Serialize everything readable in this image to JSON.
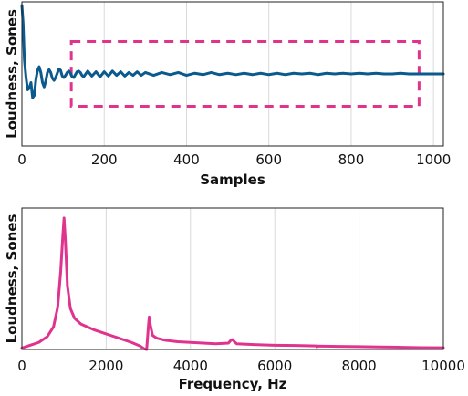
{
  "chart_data": [
    {
      "type": "line",
      "title": "",
      "xlabel": "Samples",
      "ylabel": "Loudness, Sones",
      "xlim": [
        0,
        1024
      ],
      "ylim": [
        -1,
        1
      ],
      "y_tick_labels_shown": false,
      "xticks": [
        "0",
        "200",
        "400",
        "600",
        "800",
        "1000"
      ],
      "xtick_values": [
        0,
        200,
        400,
        600,
        800,
        1000
      ],
      "grid": "vertical",
      "series": [
        {
          "color": "#0b5a8e",
          "x": [
            0,
            3,
            6,
            10,
            14,
            18,
            22,
            26,
            30,
            34,
            38,
            42,
            46,
            50,
            54,
            58,
            62,
            66,
            70,
            74,
            78,
            82,
            86,
            90,
            94,
            98,
            102,
            106,
            110,
            114,
            118,
            122,
            126,
            130,
            134,
            138,
            142,
            146,
            150,
            160,
            170,
            180,
            190,
            200,
            210,
            220,
            230,
            240,
            250,
            260,
            270,
            280,
            290,
            300,
            320,
            340,
            360,
            380,
            400,
            420,
            440,
            460,
            480,
            500,
            520,
            540,
            560,
            580,
            600,
            620,
            640,
            660,
            680,
            700,
            720,
            740,
            760,
            780,
            800,
            820,
            840,
            860,
            880,
            900,
            920,
            940,
            960,
            980,
            1000,
            1024
          ],
          "y": [
            0.95,
            0.7,
            0.2,
            -0.05,
            -0.22,
            -0.2,
            -0.12,
            -0.33,
            -0.3,
            -0.08,
            0.05,
            0.1,
            0.02,
            -0.12,
            -0.18,
            -0.1,
            0.02,
            0.06,
            0.02,
            -0.06,
            -0.09,
            -0.05,
            0.01,
            0.07,
            0.05,
            -0.03,
            -0.05,
            -0.02,
            0.02,
            0.04,
            0.01,
            -0.04,
            -0.05,
            -0.01,
            0.03,
            0.04,
            0.02,
            -0.02,
            -0.04,
            0.04,
            -0.03,
            0.03,
            -0.04,
            0.03,
            -0.03,
            0.04,
            -0.02,
            0.03,
            -0.03,
            0.02,
            -0.02,
            0.03,
            -0.02,
            0.02,
            -0.02,
            0.02,
            -0.01,
            0.02,
            -0.02,
            0.01,
            -0.01,
            0.02,
            -0.01,
            0.01,
            -0.01,
            0.01,
            -0.01,
            0.01,
            -0.01,
            0.01,
            -0.01,
            0.01,
            0.0,
            0.01,
            -0.01,
            0.01,
            0.0,
            0.01,
            0.0,
            0.01,
            0.0,
            0.01,
            0.0,
            0.0,
            0.01,
            0.0,
            0.0,
            0.0,
            0.0,
            0.0
          ]
        }
      ],
      "annotations": [
        {
          "type": "dashed-rectangle",
          "color": "#e0338e",
          "x_range": [
            120,
            965
          ],
          "y_range": [
            -0.45,
            0.45
          ]
        }
      ]
    },
    {
      "type": "line",
      "title": "",
      "xlabel": "Frequency, Hz",
      "ylabel": "Loudness, Sones",
      "xlim": [
        0,
        10000
      ],
      "ylim": [
        0,
        1
      ],
      "y_tick_labels_shown": false,
      "xticks": [
        "0",
        "2000",
        "4000",
        "6000",
        "8000",
        "10000"
      ],
      "xtick_values": [
        0,
        2000,
        4000,
        6000,
        8000,
        10000
      ],
      "grid": "vertical",
      "series": [
        {
          "color": "#e0338e",
          "x": [
            0,
            200,
            400,
            600,
            750,
            850,
            920,
            970,
            1000,
            1030,
            1080,
            1150,
            1250,
            1400,
            1700,
            2000,
            2300,
            2600,
            2800,
            2900,
            2960,
            3000,
            3020,
            3050,
            3100,
            3200,
            3400,
            3700,
            4000,
            4300,
            4600,
            4900,
            4960,
            5000,
            5040,
            5100,
            5500,
            6000,
            6500,
            6990,
            7000,
            7010,
            7500,
            8000,
            8500,
            8990,
            9000,
            9010,
            9500,
            10000
          ],
          "y": [
            0.01,
            0.03,
            0.05,
            0.09,
            0.16,
            0.3,
            0.55,
            0.8,
            0.93,
            0.78,
            0.45,
            0.29,
            0.22,
            0.18,
            0.14,
            0.11,
            0.08,
            0.05,
            0.025,
            0.005,
            0.0,
            0.16,
            0.23,
            0.17,
            0.1,
            0.08,
            0.065,
            0.055,
            0.05,
            0.045,
            0.04,
            0.045,
            0.065,
            0.07,
            0.055,
            0.04,
            0.035,
            0.03,
            0.028,
            0.025,
            0.018,
            0.024,
            0.022,
            0.02,
            0.018,
            0.016,
            0.01,
            0.015,
            0.013,
            0.012
          ]
        }
      ]
    }
  ]
}
